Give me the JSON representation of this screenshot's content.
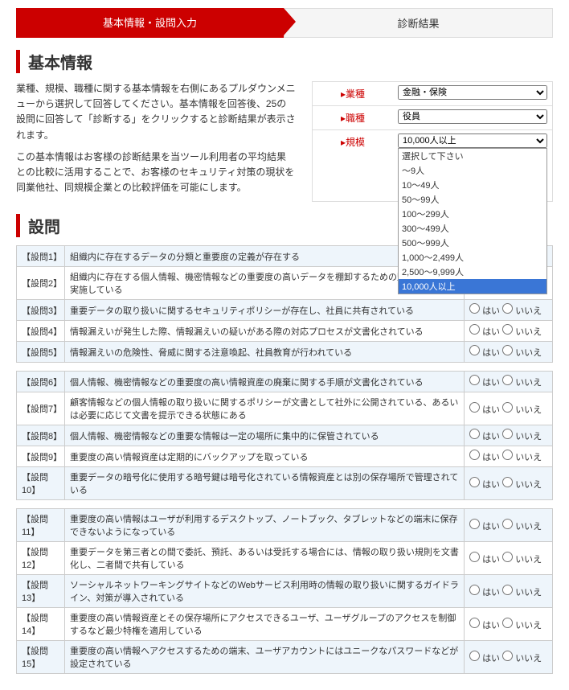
{
  "tabs": {
    "active": "基本情報・設問入力",
    "inactive": "診断結果"
  },
  "headings": {
    "basic": "基本情報",
    "questions": "設問"
  },
  "intro": {
    "p1": "業種、規模、職種に関する基本情報を右側にあるプルダウンメニューから選択して回答してください。基本情報を回答後、25の設問に回答して「診断する」をクリックすると診断結果が表示されます。",
    "p2": "この基本情報はお客様の診断結果を当ツール利用者の平均結果との比較に活用することで、お客様のセキュリティ対策の現状を同業他社、同規模企業との比較評価を可能にします。"
  },
  "selectors": {
    "industry": {
      "label": "業種",
      "value": "金融・保険"
    },
    "position": {
      "label": "職種",
      "value": "役員"
    },
    "scale": {
      "label": "規模",
      "value": "10,000人以上",
      "options": [
        "選択して下さい",
        "～9人",
        "10～49人",
        "50～99人",
        "100～299人",
        "300～499人",
        "500～999人",
        "1,000～2,499人",
        "2,500～9,999人",
        "10,000人以上"
      ]
    }
  },
  "answers": {
    "yes": "はい",
    "no": "いいえ"
  },
  "blocks": [
    [
      {
        "n": "【設問1】",
        "t": "組織内に存在するデータの分類と重要度の定義が存在する"
      },
      {
        "n": "【設問2】",
        "t": "組織内に存在する個人情報、機密情報などの重要度の高いデータを棚卸するための監査を定期的に実施している"
      },
      {
        "n": "【設問3】",
        "t": "重要データの取り扱いに関するセキュリティポリシーが存在し、社員に共有されている"
      },
      {
        "n": "【設問4】",
        "t": "情報漏えいが発生した際、情報漏えいの疑いがある際の対応プロセスが文書化されている"
      },
      {
        "n": "【設問5】",
        "t": "情報漏えいの危険性、脅威に関する注意喚起、社員教育が行われている"
      }
    ],
    [
      {
        "n": "【設問6】",
        "t": "個人情報、機密情報などの重要度の高い情報資産の廃棄に関する手順が文書化されている"
      },
      {
        "n": "【設問7】",
        "t": "顧客情報などの個人情報の取り扱いに関するポリシーが文書として社外に公開されている、あるいは必要に応じて文書を提示できる状態にある"
      },
      {
        "n": "【設問8】",
        "t": "個人情報、機密情報などの重要な情報は一定の場所に集中的に保管されている"
      },
      {
        "n": "【設問9】",
        "t": "重要度の高い情報資産は定期的にバックアップを取っている"
      },
      {
        "n": "【設問10】",
        "t": "重要データの暗号化に使用する暗号鍵は暗号化されている情報資産とは別の保存場所で管理されている"
      }
    ],
    [
      {
        "n": "【設問11】",
        "t": "重要度の高い情報はユーザが利用するデスクトップ、ノートブック、タブレットなどの端末に保存できないようになっている"
      },
      {
        "n": "【設問12】",
        "t": "重要データを第三者との間で委託、預託、あるいは受託する場合には、情報の取り扱い規則を文書化し、二者間で共有している"
      },
      {
        "n": "【設問13】",
        "t": "ソーシャルネットワーキングサイトなどのWebサービス利用時の情報の取り扱いに関するガイドライン、対策が導入されている"
      },
      {
        "n": "【設問14】",
        "t": "重要度の高い情報資産とその保存場所にアクセスできるユーザ、ユーザグループのアクセスを制御するなど最少特権を適用している"
      },
      {
        "n": "【設問15】",
        "t": "重要度の高い情報へアクセスするための端末、ユーザアカウントにはユニークなパスワードなどが設定されている"
      }
    ]
  ]
}
